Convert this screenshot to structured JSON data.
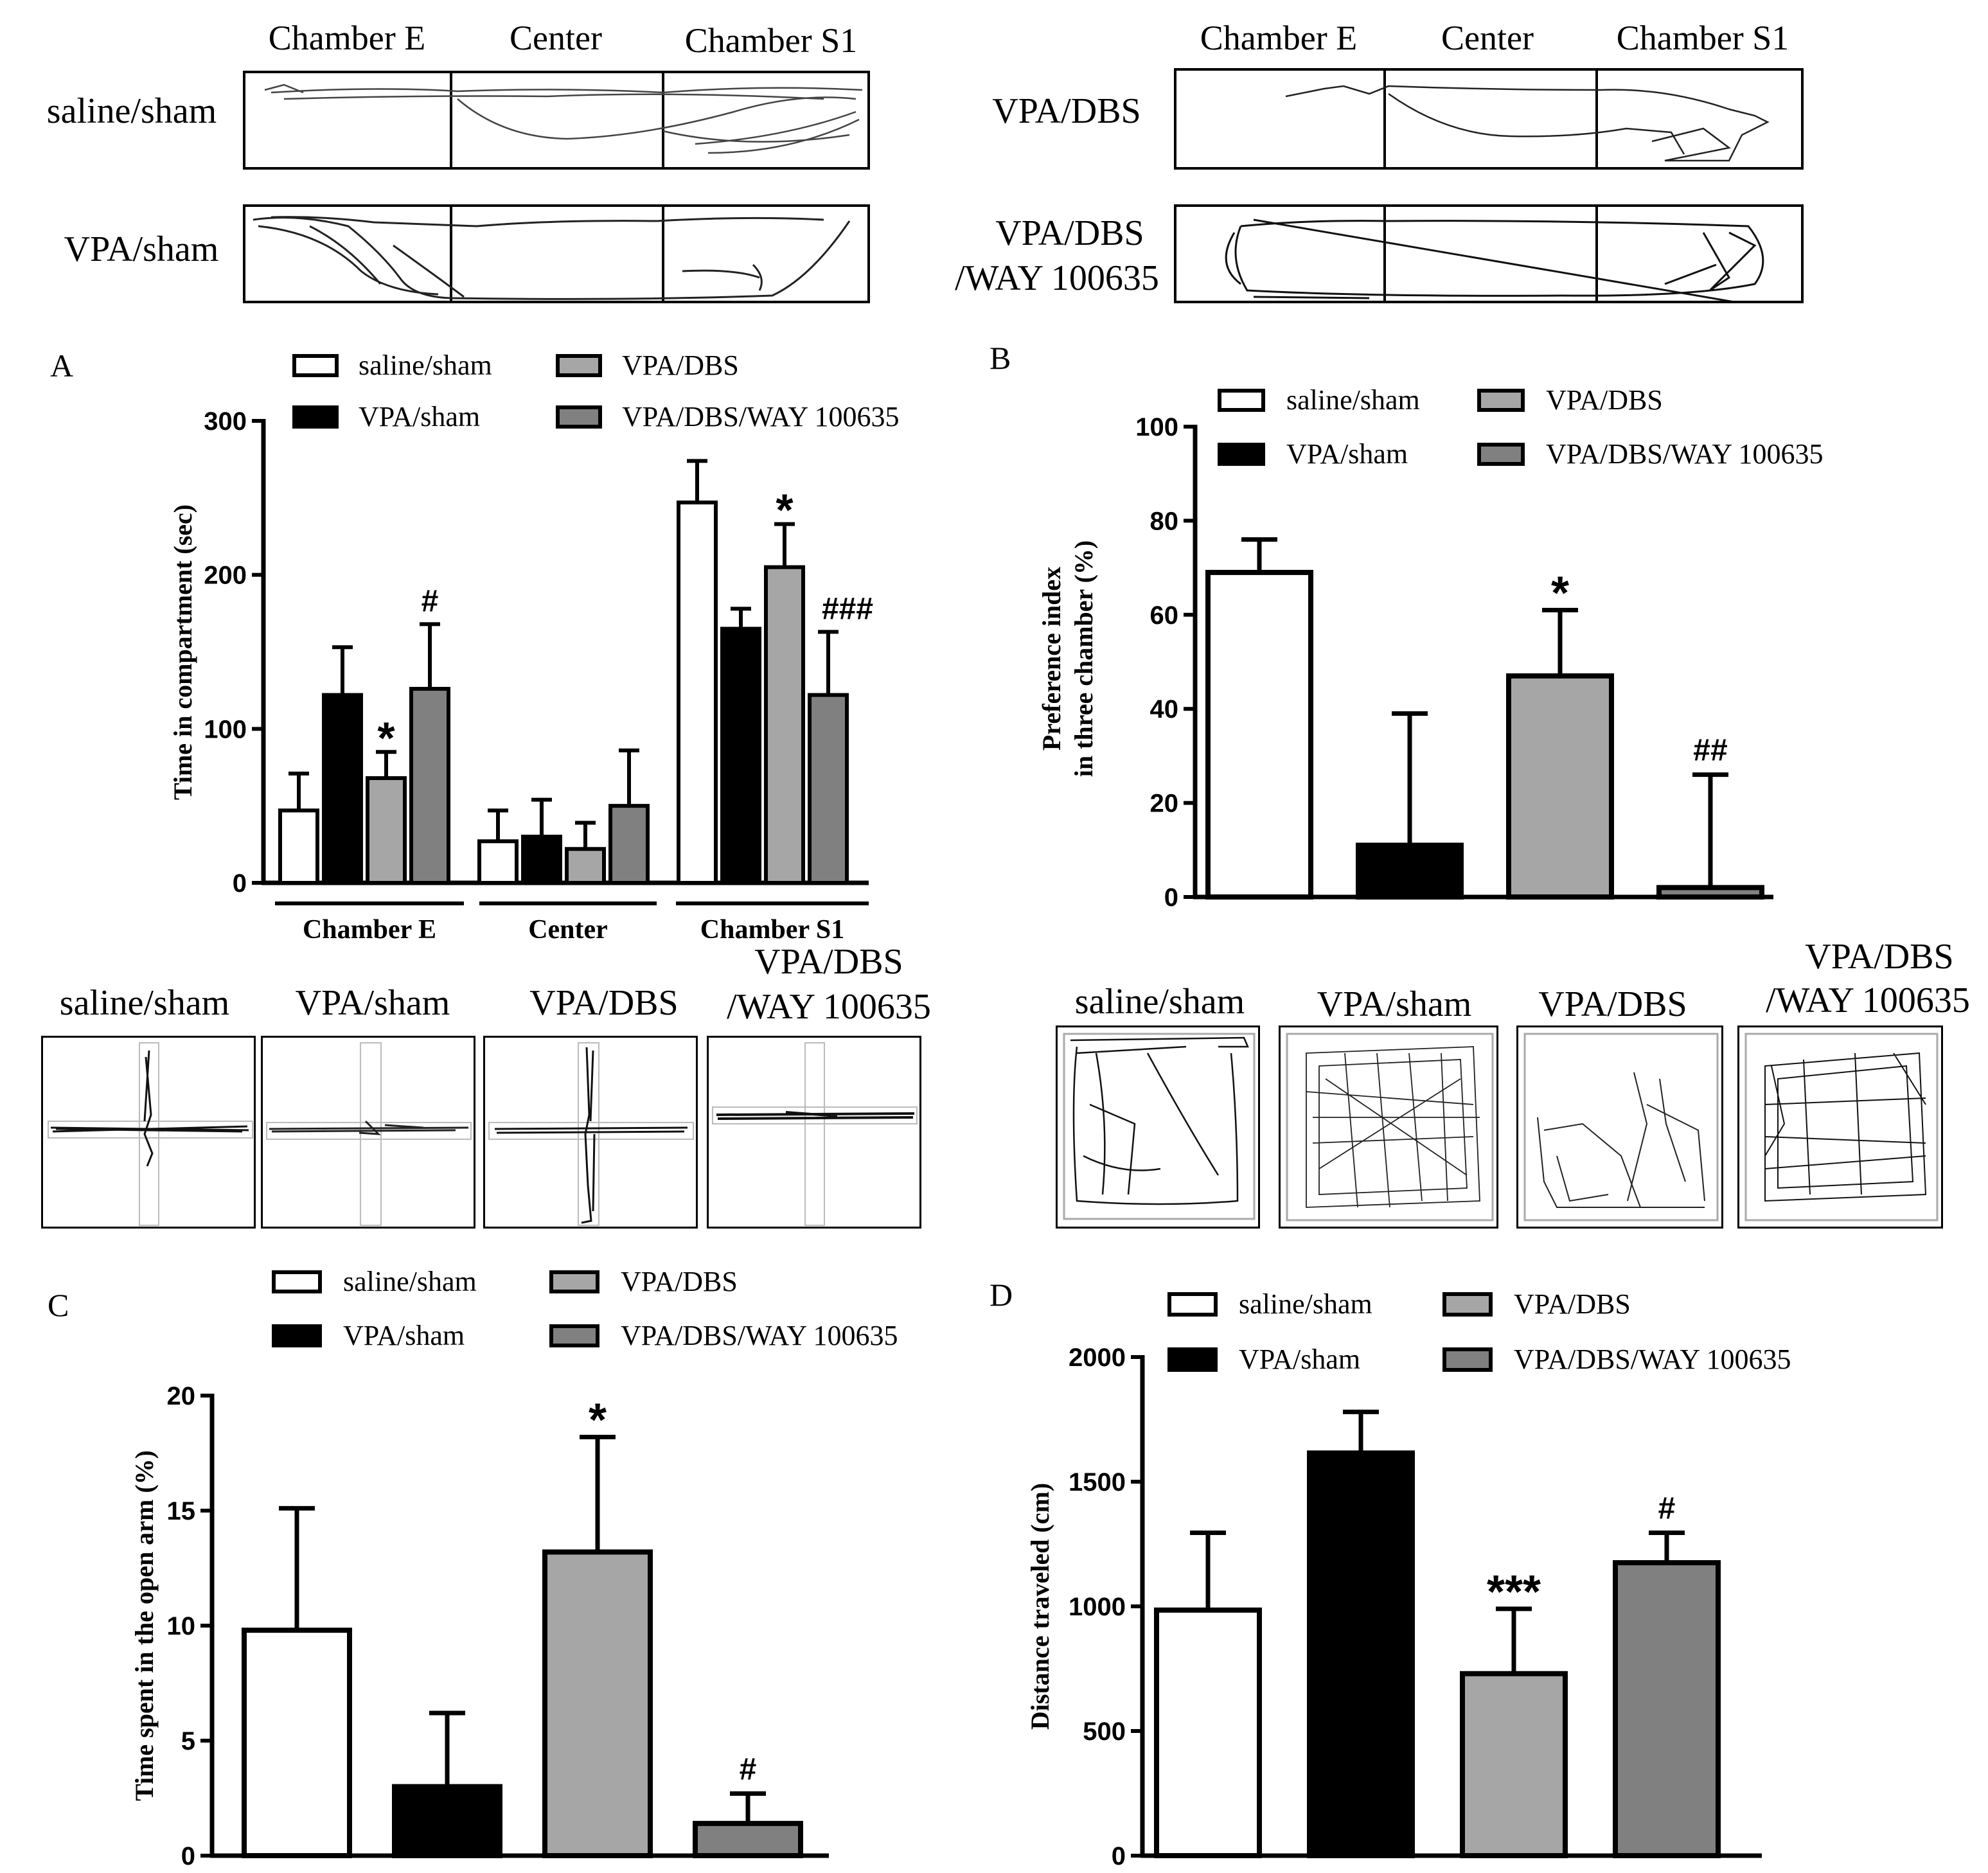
{
  "top_tracks": {
    "left_headers": [
      "Chamber E",
      "Center",
      "Chamber S1"
    ],
    "right_headers": [
      "Chamber E",
      "Center",
      "Chamber S1"
    ],
    "rows": [
      {
        "label": "saline/sham"
      },
      {
        "label": "VPA/sham"
      },
      {
        "label": "VPA/DBS"
      },
      {
        "label_line1": "VPA/DBS",
        "label_line2": "/WAY 100635"
      }
    ]
  },
  "maze_tracks": {
    "labels": [
      "saline/sham",
      "VPA/sham",
      "VPA/DBS"
    ],
    "last_label_line1": "VPA/DBS",
    "last_label_line2": "/WAY 100635"
  },
  "field_tracks": {
    "labels": [
      "saline/sham",
      "VPA/sham",
      "VPA/DBS"
    ],
    "last_label_line1": "VPA/DBS",
    "last_label_line2": "/WAY 100635"
  },
  "colors": {
    "saline_sham": "#ffffff",
    "vpa_sham": "#000000",
    "vpa_dbs": "#a6a6a6",
    "vpa_dbs_way": "#808080",
    "outline": "#000000"
  },
  "chart_data": [
    {
      "panel": "A",
      "type": "bar",
      "title": "",
      "legend": [
        "saline/sham",
        "VPA/sham",
        "VPA/DBS",
        "VPA/DBS/WAY 100635"
      ],
      "ylabel": "Time in compartment (sec)",
      "xlabel": "",
      "ylim": [
        0,
        300
      ],
      "yticks": [
        0,
        100,
        200,
        300
      ],
      "categories": [
        "Chamber E",
        "Center",
        "Chamber S1"
      ],
      "series": [
        {
          "name": "saline/sham",
          "values": [
            47,
            27,
            247
          ],
          "errors": [
            24,
            20,
            27
          ]
        },
        {
          "name": "VPA/sham",
          "values": [
            122,
            30,
            165
          ],
          "errors": [
            31,
            24,
            13
          ]
        },
        {
          "name": "VPA/DBS",
          "values": [
            68,
            22,
            205
          ],
          "errors": [
            17,
            17,
            28
          ]
        },
        {
          "name": "VPA/DBS/WAY 100635",
          "values": [
            126,
            50,
            122
          ],
          "errors": [
            42,
            36,
            41
          ]
        }
      ],
      "annotations": [
        {
          "category": 0,
          "series": 2,
          "text": "*"
        },
        {
          "category": 0,
          "series": 3,
          "text": "#"
        },
        {
          "category": 2,
          "series": 2,
          "text": "*"
        },
        {
          "category": 2,
          "series": 3,
          "text": "###"
        }
      ]
    },
    {
      "panel": "B",
      "type": "bar",
      "title": "",
      "legend": [
        "saline/sham",
        "VPA/sham",
        "VPA/DBS",
        "VPA/DBS/WAY 100635"
      ],
      "ylabel_line1": "Preference index",
      "ylabel_line2": "in three chamber (%)",
      "xlabel": "",
      "ylim": [
        0,
        100
      ],
      "yticks": [
        0,
        20,
        40,
        60,
        80,
        100
      ],
      "categories": [
        "saline/sham",
        "VPA/sham",
        "VPA/DBS",
        "VPA/DBS/WAY 100635"
      ],
      "values": [
        69,
        11,
        47,
        2
      ],
      "errors": [
        7,
        28,
        14,
        24
      ],
      "annotations": [
        {
          "index": 2,
          "text": "*"
        },
        {
          "index": 3,
          "text": "##"
        }
      ]
    },
    {
      "panel": "C",
      "type": "bar",
      "title": "",
      "legend": [
        "saline/sham",
        "VPA/sham",
        "VPA/DBS",
        "VPA/DBS/WAY 100635"
      ],
      "ylabel": "Time spent in the open arm (%)",
      "xlabel": "",
      "ylim": [
        0,
        20
      ],
      "yticks": [
        0,
        5,
        10,
        15,
        20
      ],
      "categories": [
        "saline/sham",
        "VPA/sham",
        "VPA/DBS",
        "VPA/DBS/WAY 100635"
      ],
      "values": [
        9.8,
        3.0,
        13.2,
        1.4
      ],
      "errors": [
        5.3,
        3.2,
        5.0,
        1.3
      ],
      "annotations": [
        {
          "index": 2,
          "text": "*"
        },
        {
          "index": 3,
          "text": "#"
        }
      ]
    },
    {
      "panel": "D",
      "type": "bar",
      "title": "",
      "legend": [
        "saline/sham",
        "VPA/sham",
        "VPA/DBS",
        "VPA/DBS/WAY 100635"
      ],
      "ylabel": "Distance traveled (cm)",
      "xlabel": "",
      "ylim": [
        0,
        2000
      ],
      "yticks": [
        0,
        500,
        1000,
        1500,
        2000
      ],
      "categories": [
        "saline/sham",
        "VPA/sham",
        "VPA/DBS",
        "VPA/DBS/WAY 100635"
      ],
      "values": [
        985,
        1615,
        730,
        1175
      ],
      "errors": [
        310,
        165,
        260,
        120
      ],
      "annotations": [
        {
          "index": 2,
          "text": "***"
        },
        {
          "index": 3,
          "text": "#"
        }
      ]
    }
  ]
}
